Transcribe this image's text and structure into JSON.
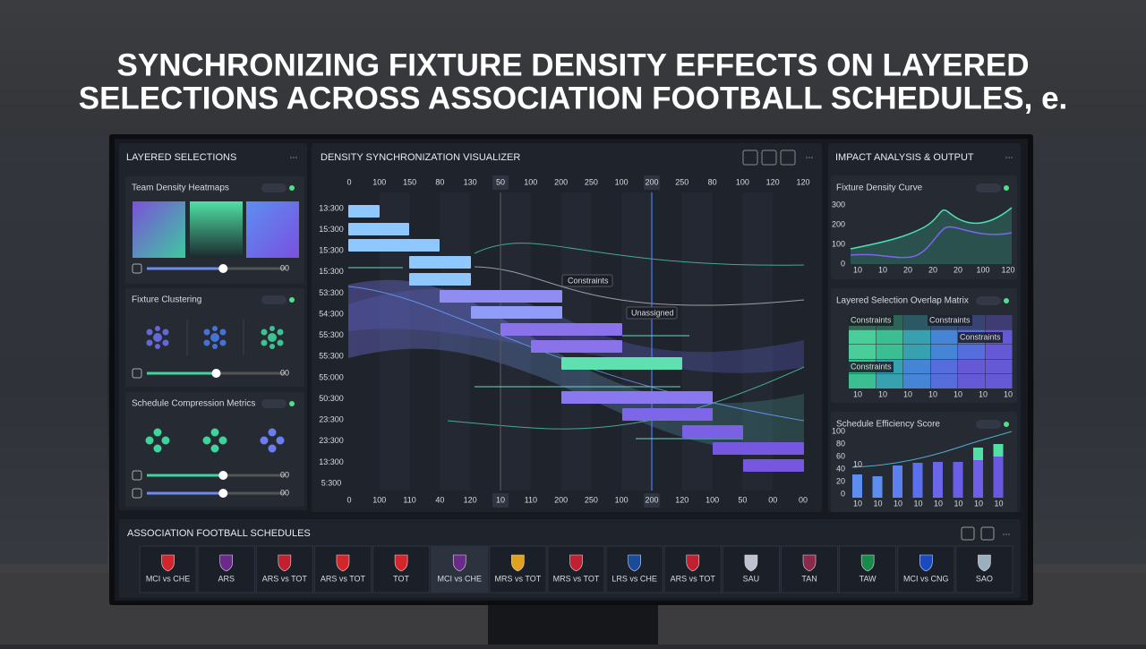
{
  "title_lines": [
    "SYNCHRONIZING FIXTURE DENSITY EFFECTS ON LAYERED",
    "SELECTIONS ACROSS ASSOCIATION FOOTBALL SCHEDULES, e."
  ],
  "left_panel": {
    "title": "LAYERED SELECTIONS",
    "cards": [
      {
        "title": "Team Density Heatmaps",
        "sliders": [
          "00"
        ]
      },
      {
        "title": "Fixture Clustering",
        "sliders": [
          "00"
        ]
      },
      {
        "title": "Schedule Compression Metrics",
        "sliders": [
          "00",
          "00"
        ]
      }
    ]
  },
  "center_panel": {
    "title": "DENSITY SYNCHRONIZATION VISUALIZER",
    "top_axis": [
      "0",
      "100",
      "150",
      "80",
      "130",
      "50",
      "100",
      "200",
      "250",
      "100",
      "200",
      "250",
      "80",
      "100",
      "120",
      "120"
    ],
    "left_axis": [
      "13:300",
      "15:300",
      "15:300",
      "15:300",
      "53:300",
      "54:300",
      "55:300",
      "55:300",
      "55:000",
      "50:300",
      "23:300",
      "23:300",
      "13:300",
      "5:300"
    ],
    "bottom_axis": [
      "0",
      "100",
      "110",
      "40",
      "120",
      "10",
      "110",
      "200",
      "250",
      "100",
      "200",
      "120",
      "100",
      "50",
      "00",
      "00"
    ],
    "annotations": [
      "Constraints",
      "Unassigned"
    ]
  },
  "right_panel": {
    "title": "IMPACT ANALYSIS & OUTPUT",
    "density_curve": {
      "title": "Fixture Density Curve",
      "y_labels": [
        "300",
        "200",
        "100",
        "0"
      ],
      "x_labels": [
        "10",
        "10",
        "20",
        "20",
        "20",
        "100",
        "120"
      ]
    },
    "overlap_matrix": {
      "title": "Layered Selection Overlap Matrix",
      "labels": [
        "Constraints",
        "Constraints",
        "Constraints",
        "Constraints"
      ],
      "x_labels": [
        "10",
        "10",
        "10",
        "10",
        "10",
        "10",
        "10"
      ]
    },
    "efficiency": {
      "title": "Schedule Efficiency Score",
      "y_labels": [
        "100",
        "80",
        "60",
        "40",
        "20",
        "0"
      ],
      "x_labels": [
        "10",
        "10",
        "10",
        "10",
        "10",
        "10",
        "10",
        "10"
      ],
      "note": "10"
    }
  },
  "schedules": {
    "title": "ASSOCIATION FOOTBALL SCHEDULES",
    "fixtures": [
      "MCI vs CHE",
      "ARS",
      "ARS vs TOT",
      "ARS vs TOT",
      "TOT",
      "MCI vs CHE",
      "MRS vs TOT",
      "MRS vs TOT",
      "LRS vs CHE",
      "ARS vs TOT",
      "SAU",
      "TAN",
      "TAW",
      "MCI vs CNG",
      "SAO"
    ]
  }
}
